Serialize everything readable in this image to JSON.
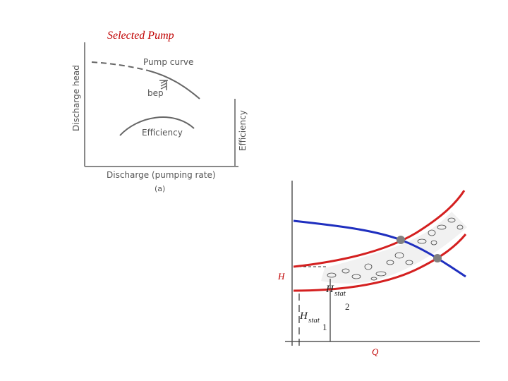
{
  "slide": {
    "title": "Selected Pump"
  },
  "left_figure": {
    "y_axis_label": "Discharge head",
    "right_axis_label": "Efficiency",
    "x_axis_label": "Discharge (pumping rate)",
    "figure_label": "(a)",
    "pump_curve_label": "Pump curve",
    "bep_label": "bep",
    "efficiency_label": "Efficiency"
  },
  "right_figure": {
    "y_axis_label": "H",
    "x_axis_label": "Q",
    "hstat_upper": {
      "main": "H",
      "sub": "stat",
      "index": "2"
    },
    "hstat_lower": {
      "main": "H",
      "sub": "stat",
      "index": "1"
    }
  },
  "colors": {
    "title": "#c00000",
    "pump_curve": "#1f2fbf",
    "system_curve": "#d42020",
    "operating_point": "#808080",
    "axis": "#555555"
  }
}
